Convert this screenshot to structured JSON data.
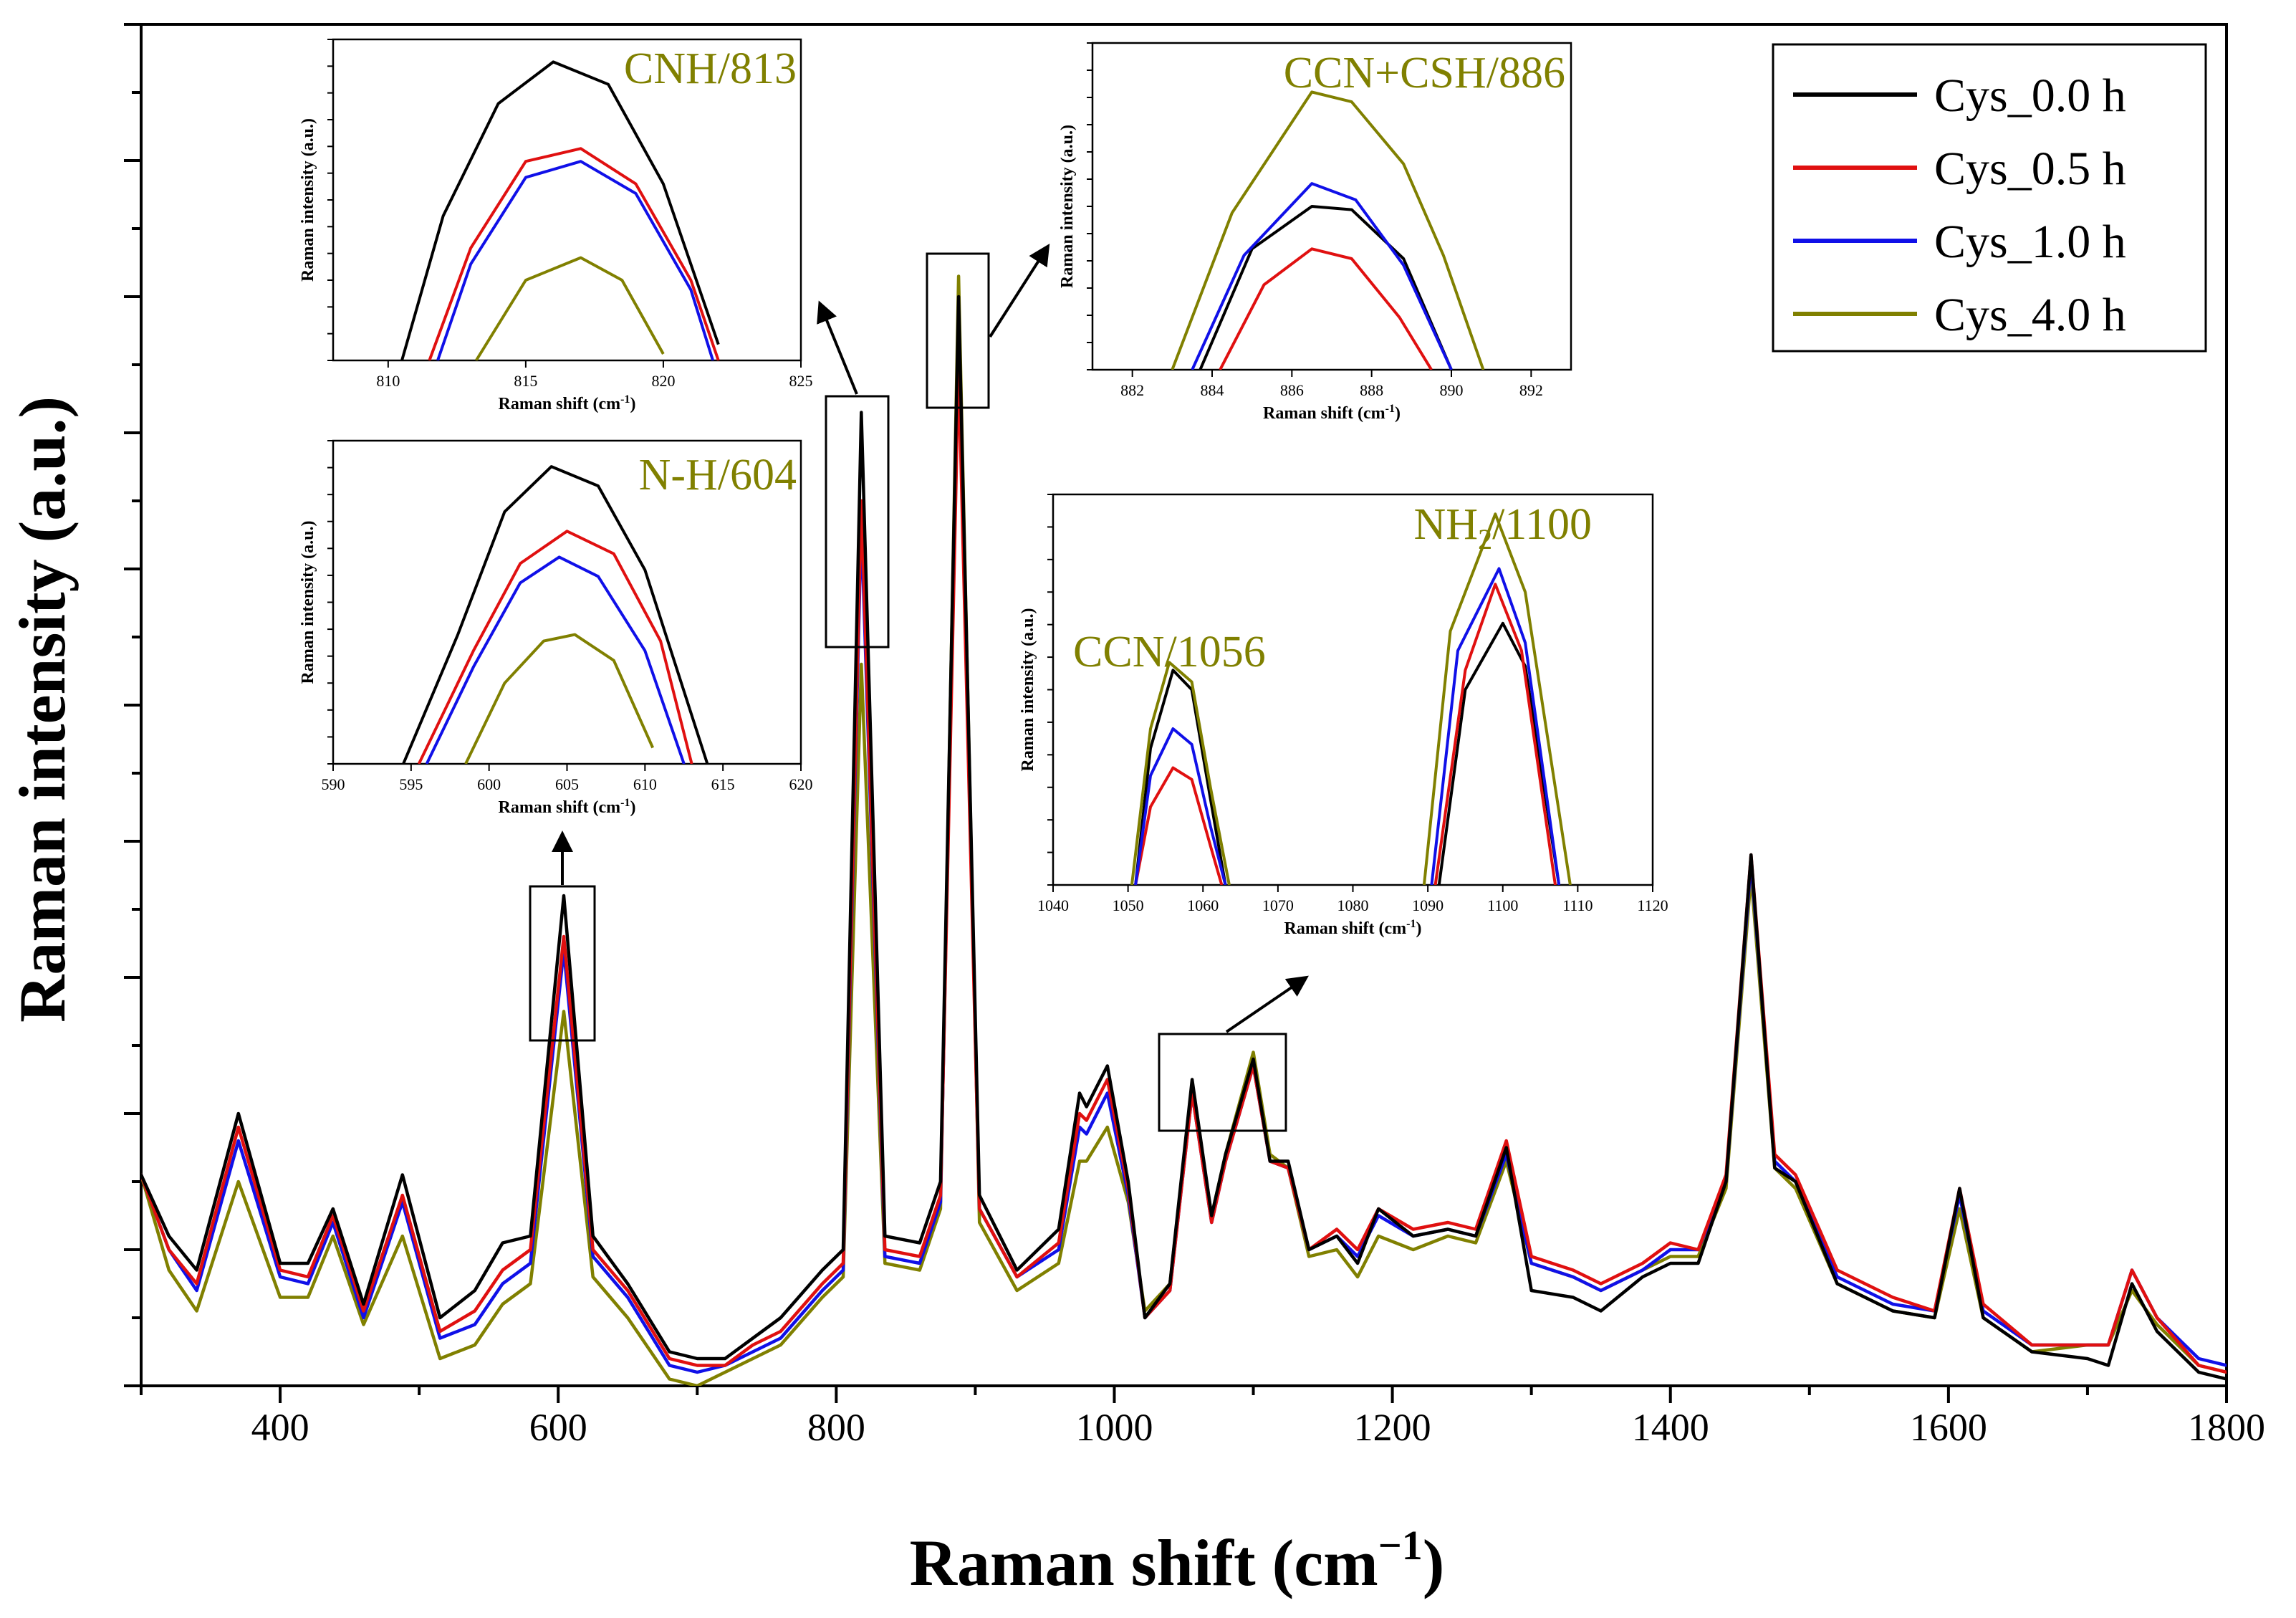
{
  "chart_data": {
    "type": "line",
    "xlabel": "Raman shift (cm",
    "xlabel_sup": "−1",
    "xlabel_close": ")",
    "ylabel": "Raman intensity (a.u.)",
    "xlim": [
      300,
      1800
    ],
    "ylim": [
      0,
      1.0
    ],
    "xticks": [
      400,
      600,
      800,
      1000,
      1200,
      1400,
      1600,
      1800
    ],
    "legend": {
      "position": "top-right",
      "entries": [
        "Cys_0.0 h",
        "Cys_0.5 h",
        "Cys_1.0 h",
        "Cys_4.0 h"
      ]
    },
    "series": [
      {
        "name": "Cys_0.0 h",
        "color": "#000000",
        "x": [
          300,
          320,
          340,
          370,
          400,
          420,
          438,
          460,
          488,
          515,
          540,
          560,
          580,
          604,
          625,
          650,
          680,
          700,
          720,
          740,
          760,
          790,
          805,
          818,
          835,
          860,
          875,
          888,
          903,
          930,
          960,
          975,
          980,
          995,
          1010,
          1022,
          1040,
          1056,
          1070,
          1080,
          1100,
          1112,
          1125,
          1140,
          1160,
          1175,
          1190,
          1215,
          1240,
          1260,
          1282,
          1300,
          1330,
          1350,
          1380,
          1400,
          1420,
          1440,
          1458,
          1475,
          1490,
          1520,
          1560,
          1590,
          1608,
          1625,
          1660,
          1700,
          1715,
          1732,
          1750,
          1780,
          1800
        ],
        "y": [
          0.155,
          0.11,
          0.085,
          0.2,
          0.09,
          0.09,
          0.13,
          0.06,
          0.155,
          0.05,
          0.07,
          0.105,
          0.11,
          0.36,
          0.11,
          0.075,
          0.025,
          0.02,
          0.02,
          0.035,
          0.05,
          0.085,
          0.1,
          0.715,
          0.11,
          0.105,
          0.15,
          0.8,
          0.14,
          0.085,
          0.115,
          0.215,
          0.205,
          0.235,
          0.15,
          0.05,
          0.075,
          0.225,
          0.125,
          0.17,
          0.24,
          0.165,
          0.165,
          0.1,
          0.11,
          0.09,
          0.13,
          0.11,
          0.115,
          0.11,
          0.175,
          0.07,
          0.065,
          0.055,
          0.08,
          0.09,
          0.09,
          0.15,
          0.39,
          0.16,
          0.15,
          0.075,
          0.055,
          0.05,
          0.145,
          0.05,
          0.025,
          0.02,
          0.015,
          0.075,
          0.04,
          0.01,
          0.005
        ]
      },
      {
        "name": "Cys_0.5 h",
        "color": "#e01010",
        "x": [
          300,
          320,
          340,
          370,
          400,
          420,
          438,
          460,
          488,
          515,
          540,
          560,
          580,
          604,
          625,
          650,
          680,
          700,
          720,
          740,
          760,
          790,
          805,
          818,
          835,
          860,
          875,
          888,
          903,
          930,
          960,
          975,
          980,
          995,
          1010,
          1022,
          1040,
          1056,
          1070,
          1080,
          1100,
          1112,
          1125,
          1140,
          1160,
          1175,
          1190,
          1215,
          1240,
          1260,
          1282,
          1300,
          1330,
          1350,
          1380,
          1400,
          1420,
          1440,
          1458,
          1475,
          1490,
          1520,
          1560,
          1590,
          1608,
          1625,
          1660,
          1700,
          1715,
          1732,
          1750,
          1780,
          1800
        ],
        "y": [
          0.155,
          0.1,
          0.075,
          0.19,
          0.085,
          0.08,
          0.125,
          0.055,
          0.14,
          0.04,
          0.055,
          0.085,
          0.1,
          0.33,
          0.1,
          0.07,
          0.02,
          0.015,
          0.015,
          0.03,
          0.04,
          0.075,
          0.09,
          0.65,
          0.1,
          0.095,
          0.14,
          0.75,
          0.13,
          0.08,
          0.105,
          0.2,
          0.195,
          0.225,
          0.145,
          0.05,
          0.07,
          0.215,
          0.12,
          0.165,
          0.235,
          0.165,
          0.16,
          0.1,
          0.115,
          0.1,
          0.13,
          0.115,
          0.12,
          0.115,
          0.18,
          0.095,
          0.085,
          0.075,
          0.09,
          0.105,
          0.1,
          0.155,
          0.39,
          0.17,
          0.155,
          0.085,
          0.065,
          0.055,
          0.145,
          0.06,
          0.03,
          0.03,
          0.03,
          0.085,
          0.05,
          0.015,
          0.01
        ]
      },
      {
        "name": "Cys_1.0 h",
        "color": "#1010e8",
        "x": [
          300,
          320,
          340,
          370,
          400,
          420,
          438,
          460,
          488,
          515,
          540,
          560,
          580,
          604,
          625,
          650,
          680,
          700,
          720,
          740,
          760,
          790,
          805,
          818,
          835,
          860,
          875,
          888,
          903,
          930,
          960,
          975,
          980,
          995,
          1010,
          1022,
          1040,
          1056,
          1070,
          1080,
          1100,
          1112,
          1125,
          1140,
          1160,
          1175,
          1190,
          1215,
          1240,
          1260,
          1282,
          1300,
          1330,
          1350,
          1380,
          1400,
          1420,
          1440,
          1458,
          1475,
          1490,
          1520,
          1560,
          1590,
          1608,
          1625,
          1660,
          1700,
          1715,
          1732,
          1750,
          1780,
          1800
        ],
        "y": [
          0.155,
          0.1,
          0.07,
          0.18,
          0.08,
          0.075,
          0.12,
          0.05,
          0.135,
          0.035,
          0.045,
          0.075,
          0.09,
          0.32,
          0.095,
          0.065,
          0.015,
          0.01,
          0.015,
          0.025,
          0.035,
          0.07,
          0.085,
          0.635,
          0.095,
          0.09,
          0.135,
          0.78,
          0.13,
          0.08,
          0.1,
          0.19,
          0.185,
          0.215,
          0.14,
          0.05,
          0.07,
          0.215,
          0.12,
          0.165,
          0.235,
          0.165,
          0.16,
          0.1,
          0.11,
          0.095,
          0.125,
          0.11,
          0.115,
          0.11,
          0.17,
          0.09,
          0.08,
          0.07,
          0.085,
          0.1,
          0.1,
          0.15,
          0.385,
          0.165,
          0.15,
          0.08,
          0.06,
          0.055,
          0.14,
          0.055,
          0.03,
          0.03,
          0.03,
          0.085,
          0.05,
          0.02,
          0.015
        ]
      },
      {
        "name": "Cys_4.0 h",
        "color": "#808000",
        "x": [
          300,
          320,
          340,
          370,
          400,
          420,
          438,
          460,
          488,
          515,
          540,
          560,
          580,
          604,
          625,
          650,
          680,
          700,
          720,
          740,
          760,
          790,
          805,
          818,
          835,
          860,
          875,
          888,
          903,
          930,
          960,
          975,
          980,
          995,
          1010,
          1022,
          1040,
          1056,
          1070,
          1080,
          1100,
          1112,
          1125,
          1140,
          1160,
          1175,
          1190,
          1215,
          1240,
          1260,
          1282,
          1300,
          1330,
          1350,
          1380,
          1400,
          1420,
          1440,
          1458,
          1475,
          1490,
          1520,
          1560,
          1590,
          1608,
          1625,
          1660,
          1700,
          1715,
          1732,
          1750,
          1780,
          1800
        ],
        "y": [
          0.155,
          0.085,
          0.055,
          0.15,
          0.065,
          0.065,
          0.11,
          0.045,
          0.11,
          0.02,
          0.03,
          0.06,
          0.075,
          0.275,
          0.08,
          0.05,
          0.005,
          0.0,
          0.01,
          0.02,
          0.03,
          0.065,
          0.08,
          0.53,
          0.09,
          0.085,
          0.13,
          0.815,
          0.12,
          0.07,
          0.09,
          0.165,
          0.165,
          0.19,
          0.135,
          0.055,
          0.075,
          0.22,
          0.125,
          0.17,
          0.245,
          0.17,
          0.16,
          0.095,
          0.1,
          0.08,
          0.11,
          0.1,
          0.11,
          0.105,
          0.165,
          0.09,
          0.08,
          0.07,
          0.085,
          0.095,
          0.095,
          0.145,
          0.375,
          0.16,
          0.145,
          0.075,
          0.055,
          0.05,
          0.13,
          0.05,
          0.025,
          0.03,
          0.03,
          0.07,
          0.045,
          0.015,
          0.01
        ]
      }
    ],
    "insets": [
      {
        "title": "CNH/813",
        "xlim": [
          808,
          825
        ],
        "xticks": [
          810,
          815,
          820,
          825
        ],
        "xlabel": "Raman shift (cm",
        "xlabel_sup": "-1",
        "xlabel_close": ")",
        "ylabel": "Raman intensity (a.u.)",
        "series": [
          {
            "name": "Cys_0.0 h",
            "x": [
              810.5,
              812,
              814,
              816,
              818,
              820,
              822
            ],
            "y": [
              0.0,
              0.45,
              0.8,
              0.93,
              0.86,
              0.55,
              0.05
            ]
          },
          {
            "name": "Cys_0.5 h",
            "x": [
              811.5,
              813,
              815,
              817,
              819,
              821,
              822
            ],
            "y": [
              0.0,
              0.35,
              0.62,
              0.66,
              0.55,
              0.25,
              0.0
            ]
          },
          {
            "name": "Cys_1.0 h",
            "x": [
              811.8,
              813,
              815,
              817,
              819,
              821,
              821.8
            ],
            "y": [
              0.0,
              0.3,
              0.57,
              0.62,
              0.52,
              0.22,
              0.0
            ]
          },
          {
            "name": "Cys_4.0 h",
            "x": [
              813.2,
              815,
              817,
              818.5,
              820
            ],
            "y": [
              0.0,
              0.25,
              0.32,
              0.25,
              0.02
            ]
          }
        ]
      },
      {
        "title": "N-H/604",
        "xlim": [
          590,
          620
        ],
        "xticks": [
          590,
          595,
          600,
          605,
          610,
          615,
          620
        ],
        "xlabel": "Raman shift (cm",
        "xlabel_sup": "-1",
        "xlabel_close": ")",
        "ylabel": "Raman intensity (a.u.)",
        "series": [
          {
            "name": "Cys_0.0 h",
            "x": [
              594.5,
              598,
              601,
              604,
              607,
              610,
              614
            ],
            "y": [
              0.0,
              0.4,
              0.78,
              0.92,
              0.86,
              0.6,
              0.0
            ]
          },
          {
            "name": "Cys_0.5 h",
            "x": [
              595.5,
              599,
              602,
              605,
              608,
              611,
              613
            ],
            "y": [
              0.0,
              0.35,
              0.62,
              0.72,
              0.65,
              0.38,
              0.0
            ]
          },
          {
            "name": "Cys_1.0 h",
            "x": [
              596,
              599,
              602,
              604.5,
              607,
              610,
              612.5
            ],
            "y": [
              0.0,
              0.3,
              0.56,
              0.64,
              0.58,
              0.35,
              0.0
            ]
          },
          {
            "name": "Cys_4.0 h",
            "x": [
              598.5,
              601,
              603.5,
              605.5,
              608,
              610.5
            ],
            "y": [
              0.0,
              0.25,
              0.38,
              0.4,
              0.32,
              0.05
            ]
          }
        ]
      },
      {
        "title": "CCN+CSH/886",
        "xlim": [
          881,
          893
        ],
        "xticks": [
          882,
          884,
          886,
          888,
          890,
          892
        ],
        "xlabel": "Raman shift (cm",
        "xlabel_sup": "-1",
        "xlabel_close": ")",
        "ylabel": "Raman intensity (a.u.)",
        "series": [
          {
            "name": "Cys_0.0 h",
            "x": [
              883.7,
              885,
              886.5,
              887.5,
              888.8,
              890
            ],
            "y": [
              0.0,
              0.37,
              0.5,
              0.49,
              0.34,
              0.0
            ]
          },
          {
            "name": "Cys_0.5 h",
            "x": [
              884.2,
              885.3,
              886.5,
              887.5,
              888.7,
              889.5
            ],
            "y": [
              0.0,
              0.26,
              0.37,
              0.34,
              0.16,
              0.0
            ]
          },
          {
            "name": "Cys_1.0 h",
            "x": [
              883.5,
              884.8,
              886.5,
              887.6,
              888.8,
              890
            ],
            "y": [
              0.0,
              0.35,
              0.57,
              0.52,
              0.32,
              0.0
            ]
          },
          {
            "name": "Cys_4.0 h",
            "x": [
              883,
              884.5,
              886.5,
              887.5,
              888.8,
              889.8,
              890.8
            ],
            "y": [
              0.0,
              0.48,
              0.85,
              0.82,
              0.63,
              0.35,
              0.0
            ]
          }
        ]
      },
      {
        "title": "NH",
        "title_sub": "2",
        "title_tail": "/1100",
        "title2": "CCN/1056",
        "xlim": [
          1040,
          1120
        ],
        "xticks": [
          1040,
          1050,
          1060,
          1070,
          1080,
          1090,
          1100,
          1110,
          1120
        ],
        "xlabel": "Raman shift (cm",
        "xlabel_sup": "-1",
        "xlabel_close": ")",
        "ylabel": "Raman intensity (a.u.)",
        "series": [
          {
            "name": "Cys_0.0 h",
            "x": [
              1051,
              1053,
              1056,
              1058.5,
              1061,
              1063,
              1091.5,
              1095,
              1100,
              1103,
              1107.5
            ],
            "y": [
              0.0,
              0.35,
              0.55,
              0.5,
              0.22,
              0.0,
              0.0,
              0.5,
              0.67,
              0.56,
              0.0
            ]
          },
          {
            "name": "Cys_0.5 h",
            "x": [
              1051,
              1053,
              1056,
              1058.5,
              1061,
              1062.5,
              1091,
              1095,
              1099,
              1102.5,
              1107
            ],
            "y": [
              0.0,
              0.2,
              0.3,
              0.27,
              0.1,
              0.0,
              0.0,
              0.55,
              0.77,
              0.6,
              0.0
            ]
          },
          {
            "name": "Cys_1.0 h",
            "x": [
              1051,
              1053,
              1056,
              1058.5,
              1061,
              1063,
              1090.5,
              1094,
              1099.5,
              1103,
              1107.5
            ],
            "y": [
              0.0,
              0.28,
              0.4,
              0.36,
              0.15,
              0.0,
              0.0,
              0.6,
              0.81,
              0.62,
              0.0
            ]
          },
          {
            "name": "Cys_4.0 h",
            "x": [
              1050.5,
              1053,
              1055.5,
              1058.5,
              1061,
              1063.5,
              1089.5,
              1093,
              1099,
              1103,
              1109
            ],
            "y": [
              0.0,
              0.4,
              0.57,
              0.52,
              0.25,
              0.0,
              0.0,
              0.65,
              0.95,
              0.75,
              0.0
            ]
          }
        ]
      }
    ]
  }
}
